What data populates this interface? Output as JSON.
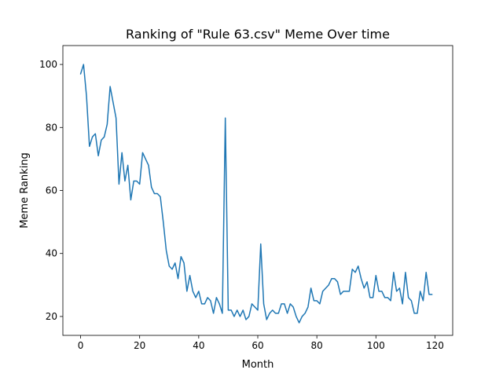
{
  "chart_data": {
    "type": "line",
    "title": "Ranking of \"Rule 63.csv\" Meme Over time",
    "xlabel": "Month",
    "ylabel": "Meme Ranking",
    "xlim": [
      -6,
      126
    ],
    "ylim": [
      14,
      106
    ],
    "xticks": [
      0,
      20,
      40,
      60,
      80,
      100,
      120
    ],
    "yticks": [
      20,
      40,
      60,
      80,
      100
    ],
    "grid": false,
    "legend": "none",
    "line_color": "#1f77b4",
    "series": [
      {
        "values": [
          97,
          100,
          90,
          74,
          77,
          78,
          71,
          76,
          77,
          81,
          93,
          88,
          83,
          62,
          72,
          63,
          68,
          57,
          63,
          63,
          62,
          72,
          70,
          68,
          61,
          59,
          59,
          58,
          50,
          41,
          36,
          35,
          37,
          32,
          39,
          37,
          28,
          33,
          28,
          26,
          28,
          24,
          24,
          26,
          25,
          21,
          26,
          24,
          21,
          83,
          22,
          22,
          20,
          22,
          20,
          22,
          19,
          20,
          24,
          23,
          22,
          43,
          24,
          19,
          21,
          22,
          21,
          21,
          24,
          24,
          21,
          24,
          23,
          20,
          18,
          20,
          21,
          23,
          29,
          25,
          25,
          24,
          28,
          29,
          30,
          32,
          32,
          31,
          27,
          28,
          28,
          28,
          35,
          34,
          36,
          32,
          29,
          31,
          26,
          26,
          33,
          28,
          28,
          26,
          26,
          25,
          34,
          28,
          29,
          24,
          34,
          26,
          25,
          21,
          21,
          28,
          25,
          34,
          27,
          27
        ]
      }
    ]
  }
}
